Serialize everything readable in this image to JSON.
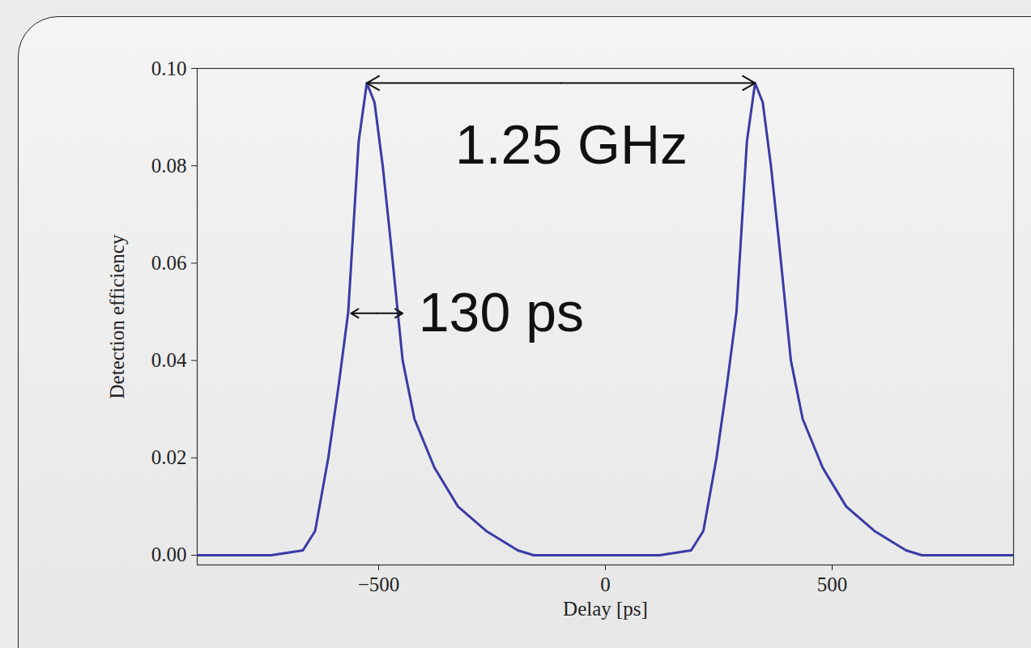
{
  "chart_data": {
    "type": "line",
    "x_label": "Delay [ps]",
    "y_label": "Detection efficiency",
    "xlim": [
      -900,
      900
    ],
    "ylim": [
      -0.002,
      0.1
    ],
    "xticks": [
      {
        "value": -500,
        "label": "−500"
      },
      0,
      500
    ],
    "yticks": [
      {
        "value": 0,
        "label": "0.00"
      },
      {
        "value": 0.02,
        "label": "0.02"
      },
      {
        "value": 0.04,
        "label": "0.04"
      },
      {
        "value": 0.06,
        "label": "0.06"
      },
      {
        "value": 0.08,
        "label": "0.08"
      },
      {
        "value": 0.1,
        "label": "0.10"
      }
    ],
    "grid": false,
    "color": "#3a3aa6",
    "x": [
      -900,
      -737,
      -667,
      -640,
      -611,
      -588,
      -567,
      -544,
      -526,
      -509,
      -491,
      -474,
      -447,
      -421,
      -377,
      -325,
      -263,
      -193,
      -158,
      119,
      189,
      216,
      245,
      268,
      289,
      312,
      330,
      347,
      365,
      382,
      409,
      435,
      479,
      531,
      593,
      663,
      698,
      900
    ],
    "values": [
      0,
      0,
      0.001,
      0.005,
      0.02,
      0.035,
      0.05,
      0.085,
      0.097,
      0.093,
      0.08,
      0.065,
      0.04,
      0.028,
      0.018,
      0.01,
      0.005,
      0.001,
      0,
      0,
      0.001,
      0.005,
      0.02,
      0.035,
      0.05,
      0.085,
      0.097,
      0.093,
      0.08,
      0.065,
      0.04,
      0.028,
      0.018,
      0.01,
      0.005,
      0.001,
      0,
      0
    ],
    "annotations": [
      {
        "text": "1.25 GHz",
        "x": -75,
        "y": 0.084,
        "arrow": {
          "x1": -526,
          "x2": 330,
          "y": 0.097
        }
      },
      {
        "text": "130 ps",
        "x": -412,
        "y": 0.0497,
        "arrow": {
          "x1": -561,
          "x2": -447,
          "y": 0.0497
        }
      }
    ]
  }
}
